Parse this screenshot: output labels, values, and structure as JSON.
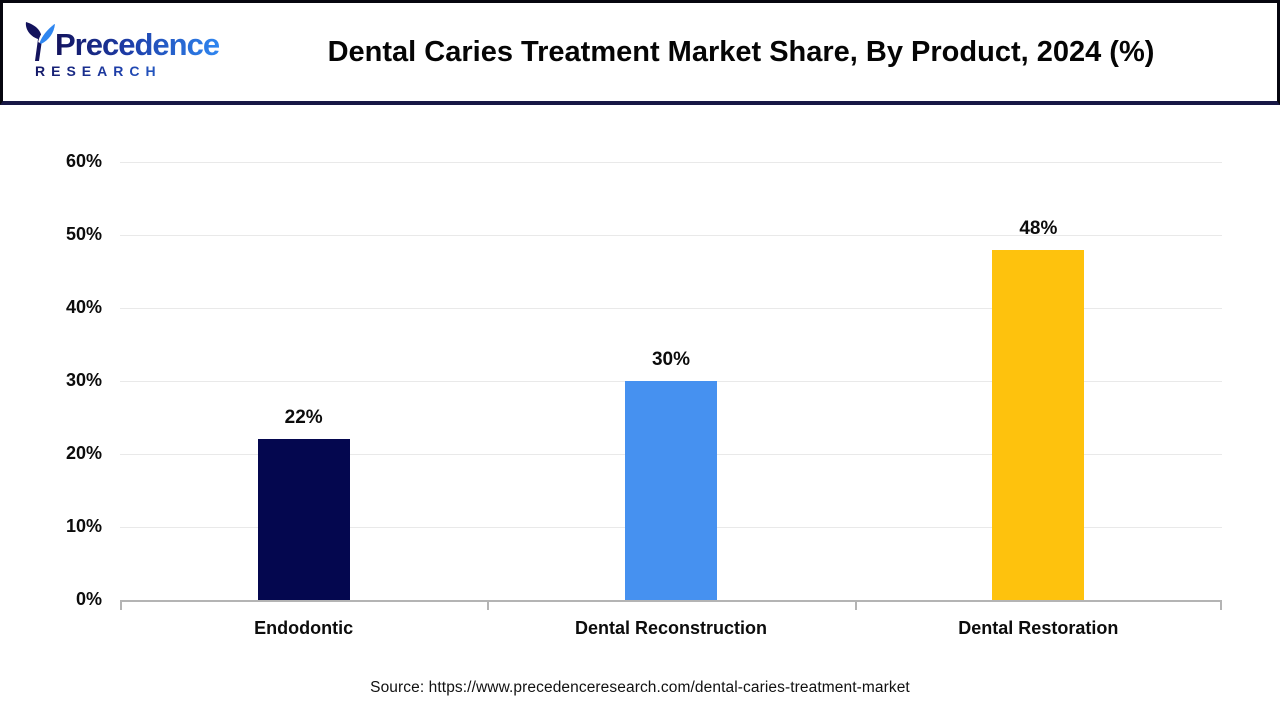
{
  "header": {
    "logo": {
      "line1": "Precedence",
      "line2": "RESEARCH"
    },
    "title": "Dental Caries Treatment Market Share, By Product, 2024 (%)"
  },
  "chart_data": {
    "type": "bar",
    "title": "Dental Caries Treatment Market Share, By Product, 2024 (%)",
    "categories": [
      "Endodontic",
      "Dental Reconstruction",
      "Dental Restoration"
    ],
    "values": [
      22,
      30,
      48
    ],
    "value_labels": [
      "22%",
      "30%",
      "48%"
    ],
    "bar_colors": [
      "#04074f",
      "#4691f0",
      "#fec20d"
    ],
    "xlabel": "",
    "ylabel": "",
    "ylim": [
      0,
      60
    ],
    "ytick_step": 10,
    "ytick_labels": [
      "0%",
      "10%",
      "20%",
      "30%",
      "40%",
      "50%",
      "60%"
    ],
    "grid": "horizontal-light",
    "legend": "none",
    "axis_color": "#b4b4b4",
    "gridline_color": "#e9e9e9"
  },
  "footer": {
    "source": "Source: https://www.precedenceresearch.com/dental-caries-treatment-market"
  }
}
